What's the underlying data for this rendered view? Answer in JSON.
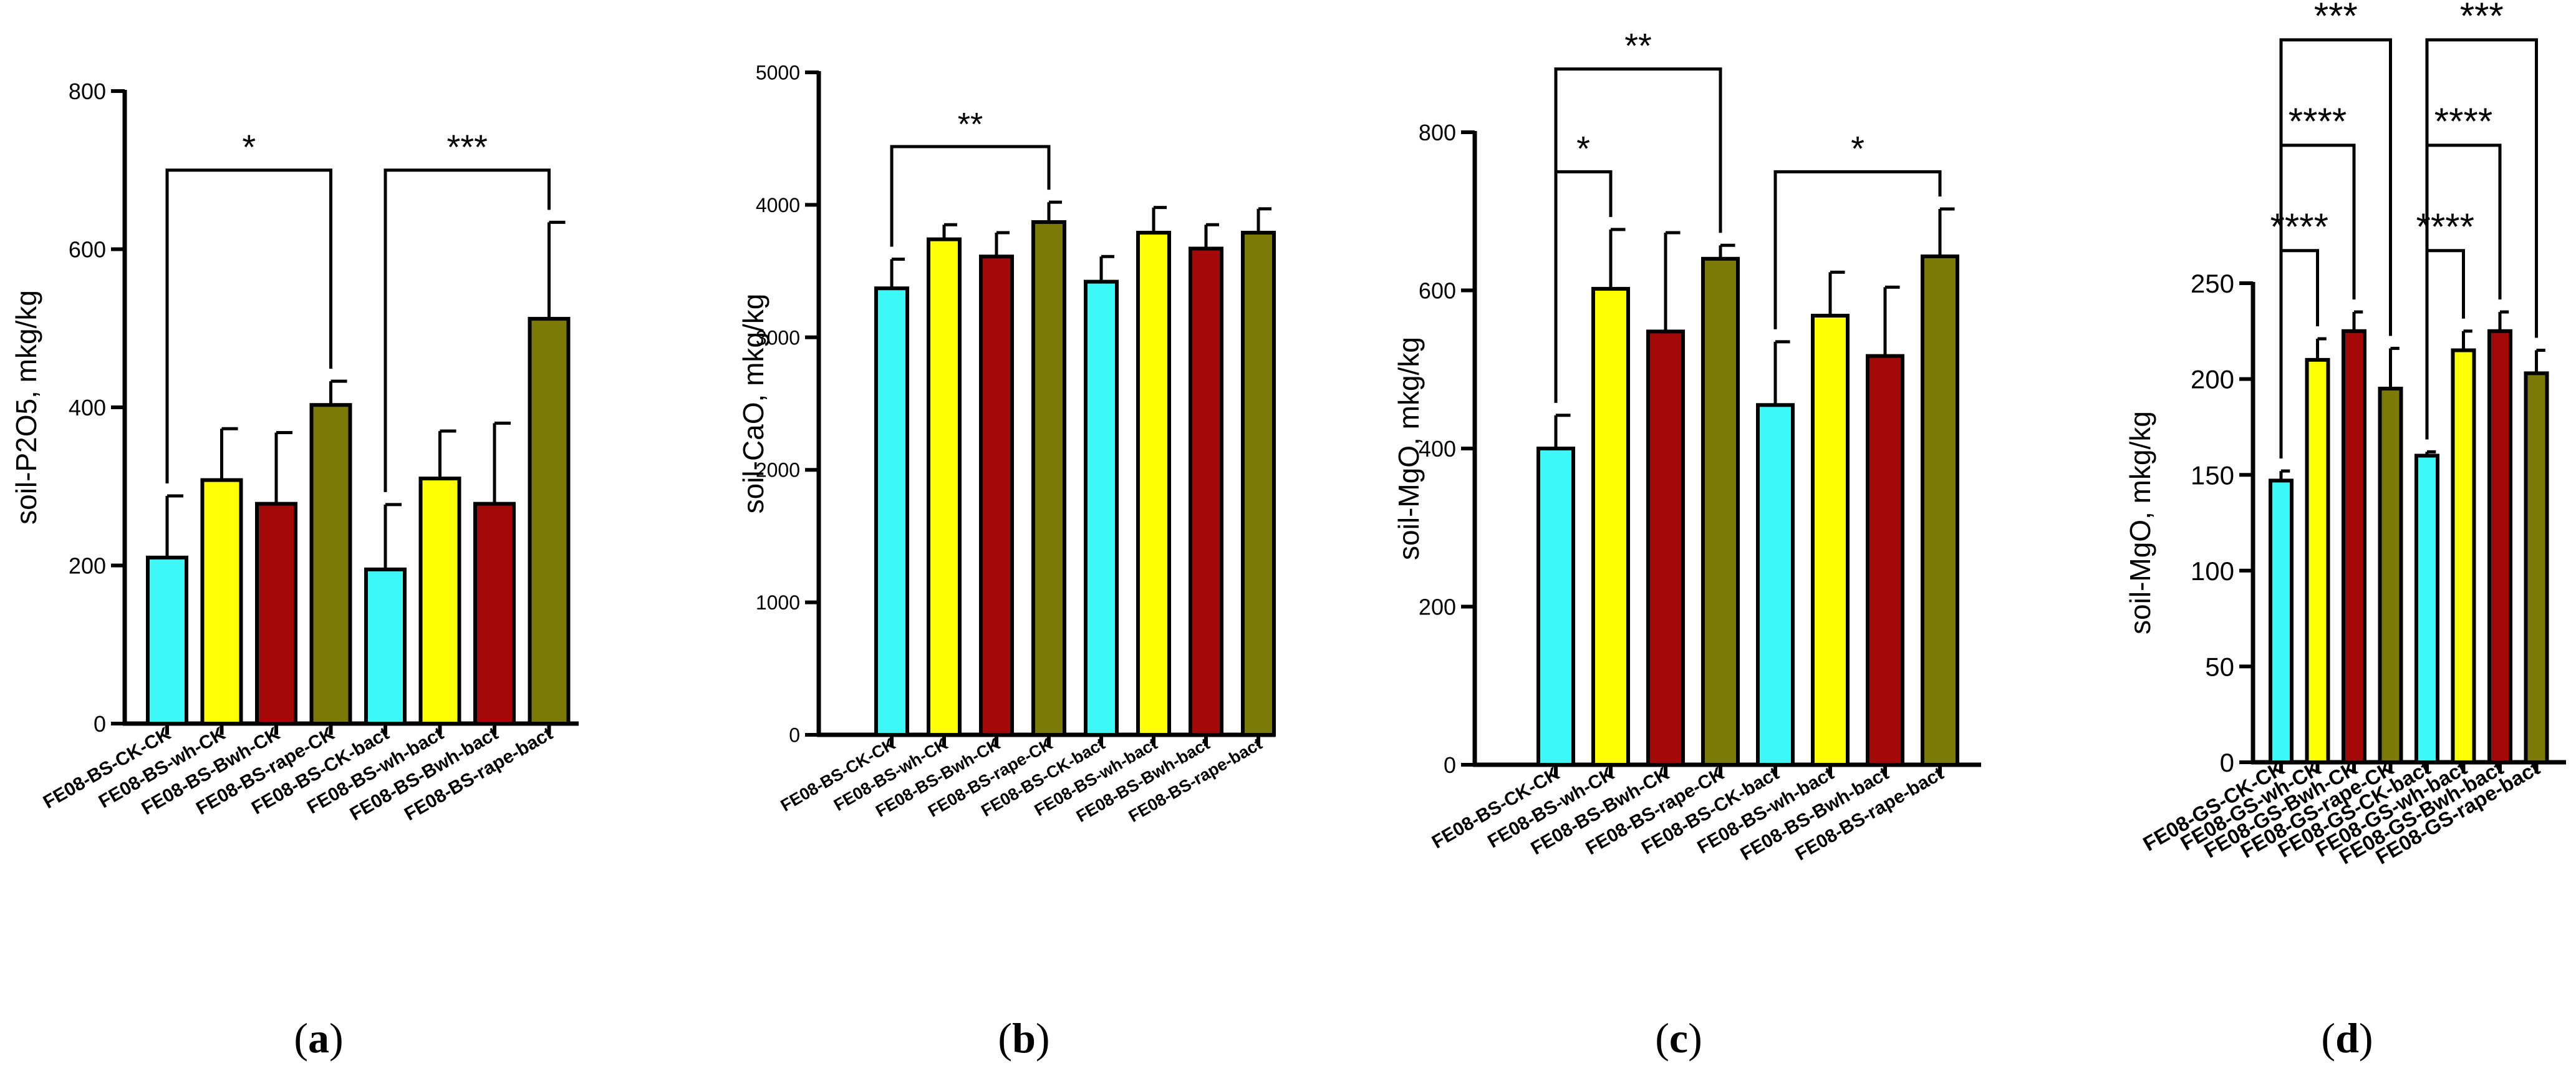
{
  "colors": {
    "cyan": "#3ef8f8",
    "yellow": "#ffff06",
    "red": "#a40808",
    "olive": "#7b7a06",
    "axis": "#000000"
  },
  "captions": [
    {
      "open": "(",
      "letter": "a",
      "close": ")"
    },
    {
      "open": "(",
      "letter": "b",
      "close": ")"
    },
    {
      "open": "(",
      "letter": "c",
      "close": ")"
    },
    {
      "open": "(",
      "letter": "d",
      "close": ")"
    }
  ],
  "chart_data": [
    {
      "id": "a",
      "type": "bar",
      "title": "",
      "ylabel": "soil-P2O5, mkg/kg",
      "xlabel": "",
      "ylim": [
        0,
        800
      ],
      "yticks": [
        0,
        200,
        400,
        600,
        800
      ],
      "categories": [
        "FE08-BS-CK-CK",
        "FE08-BS-wh-CK",
        "FE08-BS-Bwh-CK",
        "FE08-BS-rape-CK",
        "FE08-BS-CK-bact",
        "FE08-BS-wh-bact",
        "FE08-BS-Bwh-bact",
        "FE08-BS-rape-bact"
      ],
      "values": [
        210,
        308,
        278,
        403,
        195,
        310,
        278,
        512
      ],
      "errors": [
        78,
        65,
        90,
        30,
        82,
        60,
        102,
        122
      ],
      "bar_colors": [
        "cyan",
        "yellow",
        "red",
        "olive",
        "cyan",
        "yellow",
        "red",
        "olive"
      ],
      "significance": [
        {
          "from": 0,
          "to": 3,
          "y": 700,
          "label": "*"
        },
        {
          "from": 4,
          "to": 7,
          "y": 700,
          "label": "***"
        }
      ]
    },
    {
      "id": "b",
      "type": "bar",
      "title": "",
      "ylabel": "soil-CaO, mkg/kg",
      "xlabel": "",
      "ylim": [
        0,
        5000
      ],
      "yticks": [
        0,
        1000,
        2000,
        3000,
        4000,
        5000
      ],
      "categories": [
        "FE08-BS-CK-CK",
        "FE08-BS-wh-CK",
        "FE08-BS-Bwh-CK",
        "FE08-BS-rape-CK",
        "FE08-BS-CK-bact",
        "FE08-BS-wh-bact",
        "FE08-BS-Bwh-bact",
        "FE08-BS-rape-bact"
      ],
      "values": [
        3370,
        3740,
        3610,
        3870,
        3420,
        3790,
        3670,
        3790
      ],
      "errors": [
        220,
        110,
        180,
        150,
        190,
        190,
        180,
        180
      ],
      "bar_colors": [
        "cyan",
        "yellow",
        "red",
        "olive",
        "cyan",
        "yellow",
        "red",
        "olive"
      ],
      "significance": [
        {
          "from": 0,
          "to": 3,
          "y": 4440,
          "label": "**"
        }
      ]
    },
    {
      "id": "c",
      "type": "bar",
      "title": "",
      "ylabel": "soil-MgO, mkg/kg",
      "xlabel": "",
      "ylim": [
        0,
        800
      ],
      "yticks": [
        0,
        200,
        400,
        600,
        800
      ],
      "categories": [
        "FE08-BS-CK-CK",
        "FE08-BS-wh-CK",
        "FE08-BS-Bwh-CK",
        "FE08-BS-rape-CK",
        "FE08-BS-CK-bact",
        "FE08-BS-wh-bact",
        "FE08-BS-Bwh-bact",
        "FE08-BS-rape-bact"
      ],
      "values": [
        400,
        602,
        548,
        640,
        455,
        568,
        517,
        643
      ],
      "errors": [
        42,
        75,
        125,
        17,
        80,
        55,
        87,
        60
      ],
      "bar_colors": [
        "cyan",
        "yellow",
        "red",
        "olive",
        "cyan",
        "yellow",
        "red",
        "olive"
      ],
      "significance": [
        {
          "from": 0,
          "to": 1,
          "y": 750,
          "label": "*"
        },
        {
          "from": 0,
          "to": 3,
          "y": 880,
          "label": "**"
        },
        {
          "from": 4,
          "to": 7,
          "y": 750,
          "label": "*"
        }
      ]
    },
    {
      "id": "d",
      "type": "bar",
      "title": "",
      "ylabel": "soil-MgO, mkg/kg",
      "xlabel": "",
      "ylim": [
        0,
        250
      ],
      "yticks": [
        0,
        50,
        100,
        150,
        200,
        250
      ],
      "categories": [
        "FE08-GS-CK-CK",
        "FE08-GS-wh-CK",
        "FE08-GS-Bwh-CK",
        "FE08-GS-rape-CK",
        "FE08-GS-CK-bact",
        "FE08-GS-wh-bact",
        "FE08-GS-Bwh-bact",
        "FE08-GS-rape-bact"
      ],
      "values": [
        147,
        210,
        225,
        195,
        160,
        215,
        225,
        203
      ],
      "errors": [
        5,
        11,
        10,
        21,
        2,
        10,
        10,
        12
      ],
      "bar_colors": [
        "cyan",
        "yellow",
        "red",
        "olive",
        "cyan",
        "yellow",
        "red",
        "olive"
      ],
      "significance": [
        {
          "from": 0,
          "to": 1,
          "y": 267,
          "label": "****"
        },
        {
          "from": 0,
          "to": 2,
          "y": 322,
          "label": "****"
        },
        {
          "from": 0,
          "to": 3,
          "y": 377,
          "label": "***"
        },
        {
          "from": 4,
          "to": 5,
          "y": 267,
          "label": "****"
        },
        {
          "from": 4,
          "to": 6,
          "y": 322,
          "label": "****"
        },
        {
          "from": 4,
          "to": 7,
          "y": 377,
          "label": "***"
        }
      ]
    }
  ]
}
